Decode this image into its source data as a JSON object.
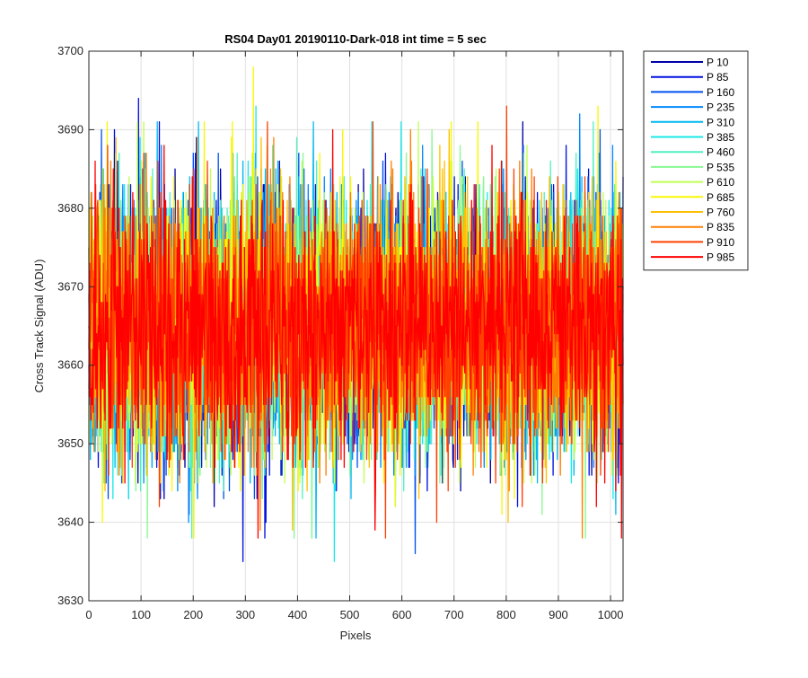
{
  "chart_data": {
    "type": "line",
    "title": "RS04 Day01 20190110-Dark-018 int time = 5 sec",
    "xlabel": "Pixels",
    "ylabel": "Cross Track Signal (ADU)",
    "xlim": [
      0,
      1024
    ],
    "ylim": [
      3630,
      3700
    ],
    "x_ticks": [
      0,
      100,
      200,
      300,
      400,
      500,
      600,
      700,
      800,
      900,
      1000
    ],
    "y_ticks": [
      3630,
      3640,
      3650,
      3660,
      3670,
      3680,
      3690,
      3700
    ],
    "grid": true,
    "legend_position": "outside-top-right",
    "noise_summary": {
      "mean": 3665,
      "observed_min": 3635,
      "observed_max": 3698,
      "samples_per_series": 1024
    },
    "series": [
      {
        "name": "P 10",
        "color": "#0000a8"
      },
      {
        "name": "P 85",
        "color": "#0010e0"
      },
      {
        "name": "P 160",
        "color": "#0050f0"
      },
      {
        "name": "P 235",
        "color": "#0088ff"
      },
      {
        "name": "P 310",
        "color": "#00b8f0"
      },
      {
        "name": "P 385",
        "color": "#18e8e8"
      },
      {
        "name": "P 460",
        "color": "#50f0c0"
      },
      {
        "name": "P 535",
        "color": "#88f890"
      },
      {
        "name": "P 610",
        "color": "#c0ff50"
      },
      {
        "name": "P 685",
        "color": "#f8f800"
      },
      {
        "name": "P 760",
        "color": "#ffc000"
      },
      {
        "name": "P 835",
        "color": "#ff8000"
      },
      {
        "name": "P 910",
        "color": "#ff4000"
      },
      {
        "name": "P 985",
        "color": "#ff0000"
      }
    ],
    "peaks": [
      {
        "series": "P 85",
        "x": 95,
        "y": 3694
      },
      {
        "series": "P 685",
        "x": 315,
        "y": 3698
      },
      {
        "series": "P 385",
        "x": 320,
        "y": 3693
      },
      {
        "series": "P 685",
        "x": 275,
        "y": 3691
      },
      {
        "series": "P 910",
        "x": 800,
        "y": 3693
      },
      {
        "series": "P 685",
        "x": 975,
        "y": 3693
      },
      {
        "series": "P 235",
        "x": 940,
        "y": 3692
      },
      {
        "series": "P 85",
        "x": 295,
        "y": 3635
      },
      {
        "series": "P 385",
        "x": 470,
        "y": 3635
      },
      {
        "series": "P 160",
        "x": 625,
        "y": 3636
      },
      {
        "series": "P 535",
        "x": 112,
        "y": 3638
      },
      {
        "series": "P 835",
        "x": 945,
        "y": 3638
      },
      {
        "series": "P 985",
        "x": 1020,
        "y": 3638
      }
    ]
  }
}
